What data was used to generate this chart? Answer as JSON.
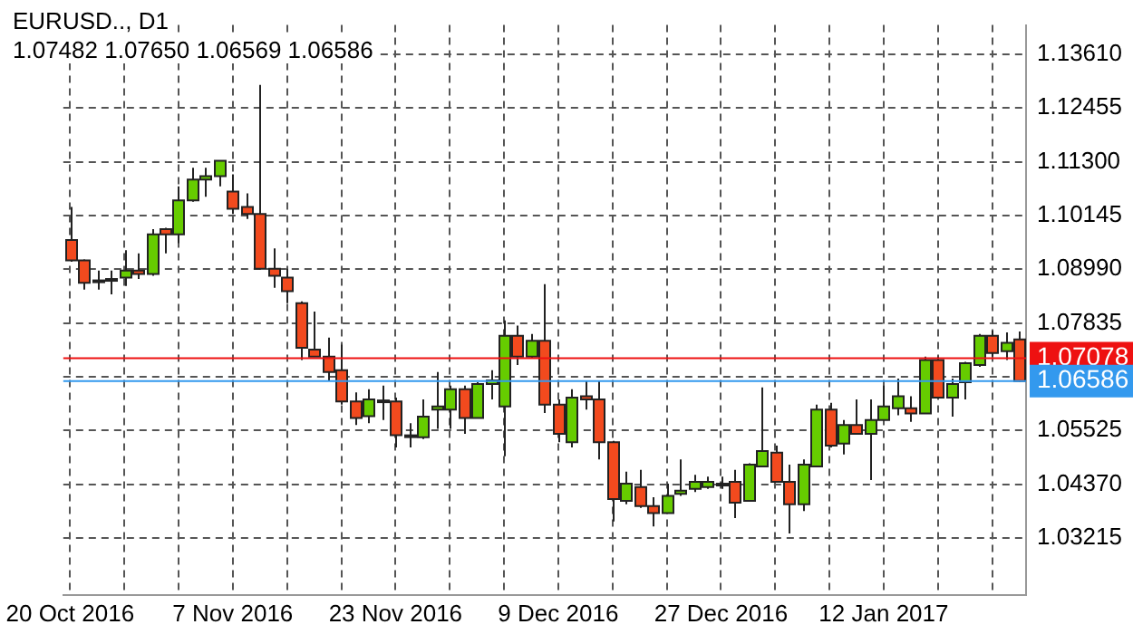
{
  "chart_data": {
    "type": "candlestick",
    "title": "EURUSD.., D1",
    "subtitle": "1.07482 1.07650 1.06569 1.06586",
    "categories": [
      "20 Oct 2016",
      null,
      null,
      null,
      null,
      null,
      null,
      null,
      null,
      null,
      null,
      null,
      "7 Nov 2016",
      null,
      null,
      null,
      null,
      null,
      null,
      null,
      null,
      null,
      null,
      null,
      "23 Nov 2016",
      null,
      null,
      null,
      null,
      null,
      null,
      null,
      null,
      null,
      null,
      null,
      "9 Dec 2016",
      null,
      null,
      null,
      null,
      null,
      null,
      null,
      null,
      null,
      null,
      null,
      "27 Dec 2016",
      null,
      null,
      null,
      null,
      null,
      null,
      null,
      null,
      null,
      null,
      null,
      "12 Jan 2017",
      null,
      null,
      null,
      null,
      null,
      null,
      null,
      null,
      null,
      null
    ],
    "ohlc": [
      [
        1.0962,
        1.1033,
        1.0915,
        1.0918
      ],
      [
        1.0918,
        1.092,
        1.0855,
        1.087
      ],
      [
        1.0875,
        1.0896,
        1.0855,
        1.0873
      ],
      [
        1.0876,
        1.0896,
        1.0845,
        1.0878
      ],
      [
        1.0881,
        1.094,
        1.0863,
        1.0896
      ],
      [
        1.0896,
        1.0933,
        1.0878,
        1.0889
      ],
      [
        1.0889,
        1.0985,
        1.0885,
        1.0974
      ],
      [
        1.0985,
        1.0988,
        1.0933,
        1.0974
      ],
      [
        1.0974,
        1.1077,
        1.0955,
        1.1047
      ],
      [
        1.1047,
        1.1117,
        1.1044,
        1.1092
      ],
      [
        1.1092,
        1.1117,
        1.1055,
        1.1099
      ],
      [
        1.1099,
        1.1133,
        1.1077,
        1.1132
      ],
      [
        1.1066,
        1.1103,
        1.1018,
        1.1029
      ],
      [
        1.1033,
        1.1062,
        1.1007,
        1.1018
      ],
      [
        1.1018,
        1.1295,
        1.0899,
        1.09
      ],
      [
        1.09,
        1.0944,
        1.0859,
        1.0885
      ],
      [
        1.0881,
        1.09,
        1.0826,
        1.0852
      ],
      [
        1.0826,
        1.083,
        1.0704,
        1.073
      ],
      [
        1.0726,
        1.0808,
        1.0711,
        1.0711
      ],
      [
        1.0711,
        1.0752,
        1.066,
        1.0678
      ],
      [
        1.0682,
        1.0737,
        1.0608,
        1.0615
      ],
      [
        1.0615,
        1.0634,
        1.0564,
        1.0579
      ],
      [
        1.0583,
        1.0641,
        1.0568,
        1.0619
      ],
      [
        1.0617,
        1.0649,
        1.0575,
        1.0615
      ],
      [
        1.0615,
        1.0623,
        1.0516,
        1.0542
      ],
      [
        1.0542,
        1.0568,
        1.0516,
        1.054
      ],
      [
        1.0538,
        1.0619,
        1.0534,
        1.0582
      ],
      [
        1.0597,
        1.0678,
        1.0556,
        1.0604
      ],
      [
        1.0597,
        1.0649,
        1.0556,
        1.0641
      ],
      [
        1.0641,
        1.0649,
        1.0545,
        1.0579
      ],
      [
        1.0579,
        1.0656,
        1.0579,
        1.0652
      ],
      [
        1.0652,
        1.0682,
        1.0619,
        1.066
      ],
      [
        1.0604,
        1.0789,
        1.0497,
        1.0756
      ],
      [
        1.0756,
        1.0778,
        1.0693,
        1.0711
      ],
      [
        1.0711,
        1.076,
        1.0708,
        1.0745
      ],
      [
        1.0745,
        1.0867,
        1.059,
        1.0608
      ],
      [
        1.0608,
        1.0619,
        1.0527,
        1.0545
      ],
      [
        1.0527,
        1.0641,
        1.0516,
        1.0623
      ],
      [
        1.0626,
        1.066,
        1.0597,
        1.0619
      ],
      [
        1.0619,
        1.066,
        1.049,
        1.0527
      ],
      [
        1.0527,
        1.053,
        1.0357,
        1.0405
      ],
      [
        1.0401,
        1.0464,
        1.0394,
        1.0438
      ],
      [
        1.0431,
        1.0468,
        1.0386,
        1.039
      ],
      [
        1.039,
        1.0409,
        1.0346,
        1.0375
      ],
      [
        1.0375,
        1.0438,
        1.0375,
        1.0412
      ],
      [
        1.0416,
        1.049,
        1.0412,
        1.0423
      ],
      [
        1.0427,
        1.0457,
        1.042,
        1.0442
      ],
      [
        1.0431,
        1.0453,
        1.0427,
        1.0442
      ],
      [
        1.0438,
        1.0453,
        1.0427,
        1.0436
      ],
      [
        1.0442,
        1.0468,
        1.0364,
        1.0397
      ],
      [
        1.0401,
        1.0482,
        1.0401,
        1.0479
      ],
      [
        1.0475,
        1.0645,
        1.0475,
        1.0508
      ],
      [
        1.0505,
        1.052,
        1.044,
        1.0442
      ],
      [
        1.0442,
        1.0479,
        1.0331,
        1.0394
      ],
      [
        1.0394,
        1.049,
        1.0379,
        1.0479
      ],
      [
        1.0475,
        1.0608,
        1.0475,
        1.0597
      ],
      [
        1.0597,
        1.0612,
        1.0516,
        1.052
      ],
      [
        1.0524,
        1.0575,
        1.0501,
        1.0564
      ],
      [
        1.0564,
        1.0619,
        1.0545,
        1.0545
      ],
      [
        1.0545,
        1.0619,
        1.0446,
        1.0575
      ],
      [
        1.0575,
        1.0649,
        1.0575,
        1.0604
      ],
      [
        1.06,
        1.0664,
        1.0585,
        1.0626
      ],
      [
        1.06,
        1.0626,
        1.0571,
        1.0589
      ],
      [
        1.0589,
        1.0711,
        1.0589,
        1.0704
      ],
      [
        1.0704,
        1.0711,
        1.0623,
        1.0623
      ],
      [
        1.0623,
        1.0664,
        1.0582,
        1.0652
      ],
      [
        1.0656,
        1.07,
        1.0619,
        1.0697
      ],
      [
        1.0693,
        1.076,
        1.0689,
        1.0756
      ],
      [
        1.0756,
        1.0767,
        1.0711,
        1.0719
      ],
      [
        1.0723,
        1.0763,
        1.0704,
        1.0741
      ],
      [
        1.07482,
        1.0765,
        1.06569,
        1.06586
      ]
    ],
    "colors": [
      "#f24a1e",
      "#f24a1e",
      "#f24a1e",
      "#66cc00",
      "#66cc00",
      "#f24a1e",
      "#66cc00",
      "#f24a1e",
      "#66cc00",
      "#66cc00",
      "#66cc00",
      "#66cc00",
      "#f24a1e",
      "#f24a1e",
      "#f24a1e",
      "#f24a1e",
      "#f24a1e",
      "#f24a1e",
      "#f24a1e",
      "#f24a1e",
      "#f24a1e",
      "#f24a1e",
      "#66cc00",
      "#f24a1e",
      "#f24a1e",
      "#f24a1e",
      "#66cc00",
      "#66cc00",
      "#66cc00",
      "#f24a1e",
      "#66cc00",
      "#66cc00",
      "#66cc00",
      "#f24a1e",
      "#66cc00",
      "#f24a1e",
      "#f24a1e",
      "#66cc00",
      "#f24a1e",
      "#f24a1e",
      "#f24a1e",
      "#66cc00",
      "#f24a1e",
      "#f24a1e",
      "#66cc00",
      "#66cc00",
      "#66cc00",
      "#66cc00",
      "#f24a1e",
      "#f24a1e",
      "#66cc00",
      "#66cc00",
      "#f24a1e",
      "#f24a1e",
      "#66cc00",
      "#66cc00",
      "#f24a1e",
      "#66cc00",
      "#f24a1e",
      "#66cc00",
      "#66cc00",
      "#66cc00",
      "#f24a1e",
      "#66cc00",
      "#f24a1e",
      "#66cc00",
      "#66cc00",
      "#66cc00",
      "#f24a1e",
      "#66cc00",
      "#f24a1e"
    ],
    "ylim": [
      1.0199,
      1.1424
    ],
    "yticks": [
      {
        "value": 1.03215,
        "label": "1.03215"
      },
      {
        "value": 1.0437,
        "label": "1.04370"
      },
      {
        "value": 1.05525,
        "label": "1.05525"
      },
      {
        "value": 1.0668,
        "label": null
      },
      {
        "value": 1.07835,
        "label": "1.07835"
      },
      {
        "value": 1.0899,
        "label": "1.08990"
      },
      {
        "value": 1.10145,
        "label": "1.10145"
      },
      {
        "value": 1.113,
        "label": "1.11300"
      },
      {
        "value": 1.12455,
        "label": "1.12455"
      },
      {
        "value": 1.1361,
        "label": "1.13610"
      }
    ],
    "ref_lines": [
      {
        "axis": "y",
        "value": 1.07078,
        "label": "1.07078",
        "color": "#ee1111"
      },
      {
        "axis": "y",
        "value": 1.06586,
        "label": "1.06586",
        "color": "#3399ee"
      }
    ],
    "grid": true,
    "legend": false
  }
}
